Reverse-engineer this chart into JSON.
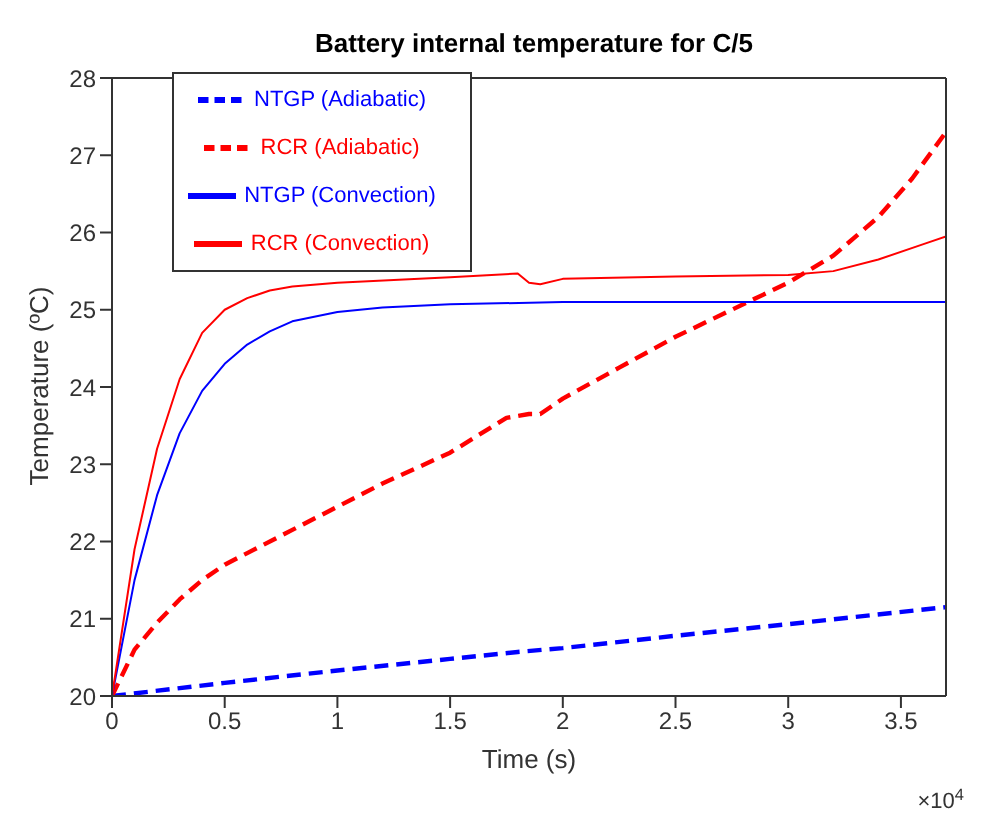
{
  "chart_data": {
    "type": "line",
    "title": "Battery internal temperature for C/5",
    "xlabel": "Time (s)",
    "ylabel": "Temperature (ºC)",
    "annotations": [
      "×10$^{4}$"
    ],
    "xlim": [
      0,
      3.7
    ],
    "xticks": [
      0,
      0.5,
      1,
      1.5,
      2,
      2.5,
      3,
      3.5
    ],
    "ylim": [
      20,
      28
    ],
    "yticks": [
      20,
      21,
      22,
      23,
      24,
      25,
      26,
      27,
      28
    ],
    "grid": false,
    "legend": "top left",
    "marker": "none",
    "series": [
      {
        "name": "NTGP (Adiabatic)",
        "color": "#0000ff",
        "line_style": "dashed",
        "x": [
          0,
          0.5,
          1,
          1.5,
          1.8,
          2,
          2.5,
          3,
          3.7
        ],
        "values": [
          20,
          20.17,
          20.33,
          20.48,
          20.57,
          20.62,
          20.78,
          20.93,
          21.15
        ]
      },
      {
        "name": "RCR (Adiabatic)",
        "color": "#ff0000",
        "line_style": "dashed",
        "x": [
          0,
          0.1,
          0.2,
          0.3,
          0.4,
          0.5,
          0.6,
          0.8,
          1,
          1.2,
          1.5,
          1.75,
          1.85,
          1.9,
          2,
          2.25,
          2.5,
          2.75,
          3,
          3.2,
          3.4,
          3.55,
          3.7
        ],
        "values": [
          20,
          20.6,
          20.95,
          21.25,
          21.5,
          21.7,
          21.85,
          22.15,
          22.45,
          22.75,
          23.15,
          23.6,
          23.65,
          23.65,
          23.85,
          24.25,
          24.65,
          25.0,
          25.35,
          25.7,
          26.2,
          26.7,
          27.3
        ]
      },
      {
        "name": "NTGP (Convection)",
        "color": "#0000ff",
        "line_style": "solid",
        "x": [
          0,
          0.1,
          0.2,
          0.3,
          0.4,
          0.5,
          0.6,
          0.7,
          0.8,
          1,
          1.2,
          1.5,
          2,
          3.7
        ],
        "values": [
          20,
          21.5,
          22.6,
          23.4,
          23.95,
          24.3,
          24.55,
          24.72,
          24.85,
          24.97,
          25.03,
          25.07,
          25.1,
          25.1
        ]
      },
      {
        "name": "RCR (Convection)",
        "color": "#ff0000",
        "line_style": "solid",
        "x": [
          0,
          0.1,
          0.2,
          0.3,
          0.4,
          0.5,
          0.6,
          0.7,
          0.8,
          1,
          1.5,
          1.8,
          1.85,
          1.9,
          2,
          2.5,
          3,
          3.2,
          3.4,
          3.6,
          3.7
        ],
        "values": [
          20,
          21.9,
          23.2,
          24.1,
          24.7,
          25.0,
          25.15,
          25.25,
          25.3,
          25.35,
          25.42,
          25.47,
          25.35,
          25.33,
          25.4,
          25.43,
          25.45,
          25.5,
          25.65,
          25.85,
          25.95
        ]
      }
    ]
  }
}
